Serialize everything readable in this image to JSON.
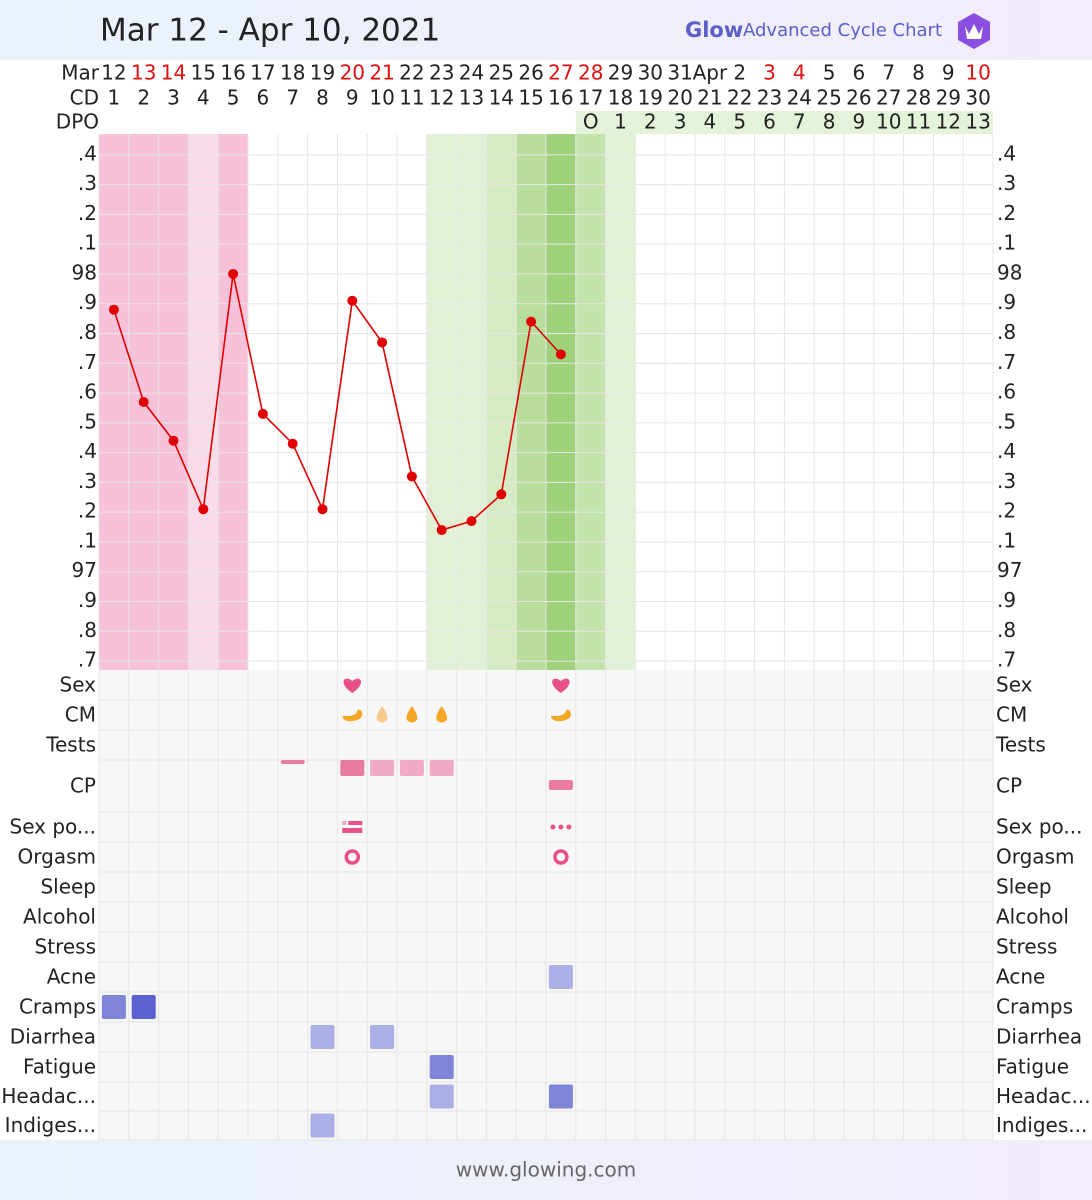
{
  "header": {
    "title": "Mar 12 - Apr 10, 2021",
    "brand": "Glow",
    "brand_subtitle": "Advanced Cycle Chart"
  },
  "chart_data": {
    "type": "line",
    "date_row_label": "Mar",
    "dates": [
      "12",
      "13",
      "14",
      "15",
      "16",
      "17",
      "18",
      "19",
      "20",
      "21",
      "22",
      "23",
      "24",
      "25",
      "26",
      "27",
      "28",
      "29",
      "30",
      "31",
      "Apr",
      "2",
      "3",
      "4",
      "5",
      "6",
      "7",
      "8",
      "9",
      "10"
    ],
    "date_colors": [
      "#222",
      "#e01010",
      "#e01010",
      "#222",
      "#222",
      "#222",
      "#222",
      "#222",
      "#e01010",
      "#e01010",
      "#222",
      "#222",
      "#222",
      "#222",
      "#222",
      "#e01010",
      "#e01010",
      "#222",
      "#222",
      "#222",
      "#222",
      "#222",
      "#e01010",
      "#e01010",
      "#222",
      "#222",
      "#222",
      "#222",
      "#222",
      "#e01010"
    ],
    "cd_label": "CD",
    "cd": [
      1,
      2,
      3,
      4,
      5,
      6,
      7,
      8,
      9,
      10,
      11,
      12,
      13,
      14,
      15,
      16,
      17,
      18,
      19,
      20,
      21,
      22,
      23,
      24,
      25,
      26,
      27,
      28,
      29,
      30
    ],
    "dpo_label": "DPO",
    "dpo": [
      null,
      null,
      null,
      null,
      null,
      null,
      null,
      null,
      null,
      null,
      null,
      null,
      null,
      null,
      null,
      null,
      "O",
      1,
      2,
      3,
      4,
      5,
      6,
      7,
      8,
      9,
      10,
      11,
      12,
      13
    ],
    "dpo_color": "#e3f2d8",
    "values": [
      97.88,
      97.57,
      97.44,
      97.21,
      98.0,
      97.53,
      97.43,
      97.21,
      97.91,
      97.77,
      97.32,
      97.14,
      97.17,
      97.26,
      97.84,
      97.73,
      null,
      null,
      null,
      null,
      null,
      null,
      null,
      null,
      null,
      null,
      null,
      null,
      null,
      null
    ],
    "color": "#e00000",
    "ylim": [
      96.67,
      98.47
    ],
    "yticks": [
      {
        "value": 98.4,
        "label": ".4"
      },
      {
        "value": 98.3,
        "label": ".3"
      },
      {
        "value": 98.2,
        "label": ".2"
      },
      {
        "value": 98.1,
        "label": ".1"
      },
      98,
      {
        "value": 97.9,
        "label": ".9"
      },
      {
        "value": 97.8,
        "label": ".8"
      },
      {
        "value": 97.7,
        "label": ".7"
      },
      {
        "value": 97.6,
        "label": ".6"
      },
      {
        "value": 97.5,
        "label": ".5"
      },
      {
        "value": 97.4,
        "label": ".4"
      },
      {
        "value": 97.3,
        "label": ".3"
      },
      {
        "value": 97.2,
        "label": ".2"
      },
      {
        "value": 97.1,
        "label": ".1"
      },
      97,
      {
        "value": 96.9,
        "label": ".9"
      },
      {
        "value": 96.8,
        "label": ".8"
      },
      {
        "value": 96.7,
        "label": ".7"
      }
    ],
    "grid": true,
    "shading": [
      "#f7c1d9",
      "#f7c1d9",
      "#f7c1d9",
      "#fadbe9",
      "#f7c1d9",
      null,
      null,
      null,
      null,
      null,
      null,
      "#e2f1d6",
      "#e2f1d6",
      "#d5ebc4",
      "#b8dd9d",
      "#9fd27b",
      "#c3e4ab",
      "#e2f1d6",
      null,
      null,
      null,
      null,
      null,
      null,
      null,
      null,
      null,
      null,
      null,
      null
    ],
    "symptoms": [
      {
        "name": "Sex",
        "kind": "heart",
        "color": "#e8508a",
        "entries": [
          {
            "day": 9
          },
          {
            "day": 16
          }
        ]
      },
      {
        "name": "CM",
        "kind": "cm",
        "color": "#f5a623",
        "entries": [
          {
            "day": 9,
            "icon": "creamy"
          },
          {
            "day": 10,
            "icon": "watery"
          },
          {
            "day": 11,
            "icon": "drop"
          },
          {
            "day": 12,
            "icon": "drop"
          },
          {
            "day": 16,
            "icon": "creamy"
          }
        ]
      },
      {
        "name": "Tests",
        "kind": "dash",
        "color": "#eb7aa3",
        "entries": [
          {
            "day": 7
          }
        ]
      },
      {
        "name": "CP",
        "kind": "cp",
        "color": "#eb7aa3",
        "entries": [
          {
            "day": 9,
            "level": 3
          },
          {
            "day": 10,
            "level": 2
          },
          {
            "day": 11,
            "level": 2
          },
          {
            "day": 12,
            "level": 2
          },
          {
            "day": 16,
            "level": 1
          }
        ]
      },
      {
        "name": "Sex po...",
        "kind": "sexpos",
        "color": "#e8508a",
        "entries": [
          {
            "day": 9,
            "icon": "list"
          },
          {
            "day": 16,
            "icon": "dots"
          }
        ]
      },
      {
        "name": "Orgasm",
        "kind": "ring",
        "color": "#e8508a",
        "entries": [
          {
            "day": 9
          },
          {
            "day": 16
          }
        ]
      },
      {
        "name": "Sleep",
        "kind": "square",
        "entries": []
      },
      {
        "name": "Alcohol",
        "kind": "square",
        "entries": []
      },
      {
        "name": "Stress",
        "kind": "square",
        "entries": []
      },
      {
        "name": "Acne",
        "kind": "square",
        "entries": [
          {
            "day": 16,
            "level": 1
          }
        ]
      },
      {
        "name": "Cramps",
        "kind": "square",
        "entries": [
          {
            "day": 1,
            "level": 2
          },
          {
            "day": 2,
            "level": 3
          }
        ]
      },
      {
        "name": "Diarrhea",
        "kind": "square",
        "entries": [
          {
            "day": 8,
            "level": 1
          },
          {
            "day": 10,
            "level": 1
          }
        ]
      },
      {
        "name": "Fatigue",
        "kind": "square",
        "entries": [
          {
            "day": 12,
            "level": 2
          }
        ]
      },
      {
        "name": "Headac...",
        "kind": "square",
        "entries": [
          {
            "day": 12,
            "level": 1
          },
          {
            "day": 16,
            "level": 2
          }
        ]
      },
      {
        "name": "Indiges...",
        "kind": "square",
        "entries": [
          {
            "day": 8,
            "level": 1
          }
        ]
      }
    ]
  },
  "footer": "www.glowing.com"
}
